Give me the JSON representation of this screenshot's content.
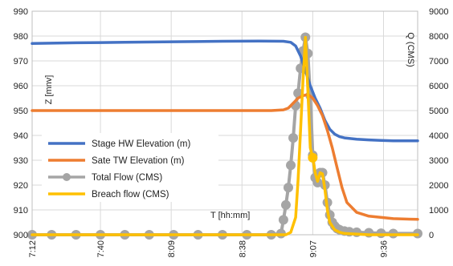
{
  "chart_data": {
    "type": "line",
    "x_unit": "minutes_after_midnight",
    "ylim": [
      900,
      990
    ],
    "y2lim": [
      0,
      9000
    ],
    "xlim": [
      432,
      590
    ],
    "left_ticks": [
      "900",
      "910",
      "920",
      "930",
      "940",
      "950",
      "960",
      "970",
      "980",
      "990"
    ],
    "right_ticks": [
      "0",
      "1000",
      "2000",
      "3000",
      "4000",
      "5000",
      "6000",
      "7000",
      "8000",
      "9000"
    ],
    "x_ticks": [
      {
        "label": "7:12",
        "value": 432
      },
      {
        "label": "7:40",
        "value": 460
      },
      {
        "label": "8:09",
        "value": 489
      },
      {
        "label": "8:38",
        "value": 518
      },
      {
        "label": "9:07",
        "value": 547
      },
      {
        "label": "9:36",
        "value": 576
      }
    ],
    "ylabel": "Z [mnv]",
    "y2label": "Q (CMS)",
    "xlabel": "T [hh:mm]",
    "grid": true,
    "legend_position": "lower-left",
    "series": [
      {
        "name": "Stage HW Elevation (m)",
        "color": "#4472c4",
        "axis": "left",
        "marker": false,
        "x": [
          432,
          450,
          470,
          490,
          510,
          525,
          535,
          538,
          540,
          542,
          544,
          546,
          548,
          550,
          552,
          554,
          556,
          558,
          560,
          565,
          570,
          575,
          580,
          590
        ],
        "y": [
          977,
          977.3,
          977.5,
          977.7,
          977.9,
          978,
          977.9,
          977.5,
          976,
          972,
          966,
          960,
          955,
          951,
          946,
          942.5,
          940.5,
          939.5,
          939,
          938.5,
          938.2,
          938,
          937.8,
          937.8
        ]
      },
      {
        "name": "Sate TW Elevation (m)",
        "color": "#ed7d31",
        "axis": "left",
        "marker": false,
        "x": [
          432,
          450,
          470,
          490,
          510,
          530,
          535,
          537,
          539,
          541,
          543,
          545,
          547,
          549,
          551,
          553,
          555,
          557,
          559,
          561,
          565,
          570,
          580,
          590
        ],
        "y": [
          950,
          950,
          950,
          950,
          950,
          950,
          950.3,
          951,
          953,
          955,
          956,
          956.5,
          955,
          952,
          948,
          942,
          935,
          927,
          919,
          913,
          909,
          907.5,
          906.5,
          906.2
        ]
      },
      {
        "name": "Total Flow (CMS)",
        "color": "#a5a5a5",
        "axis": "right",
        "marker": true,
        "x": [
          432,
          440,
          450,
          460,
          470,
          480,
          490,
          500,
          510,
          520,
          530,
          534,
          535,
          536,
          537,
          538,
          539,
          540,
          541,
          542,
          543,
          544,
          545,
          546,
          547,
          548,
          549,
          550,
          551,
          552,
          553,
          554,
          555,
          556,
          557,
          558,
          560,
          562,
          565,
          570,
          575,
          580,
          590
        ],
        "y": [
          0,
          0,
          0,
          0,
          0,
          0,
          0,
          0,
          0,
          0,
          0,
          50,
          600,
          1200,
          1900,
          2800,
          3900,
          5200,
          5700,
          6700,
          7400,
          7950,
          7300,
          5600,
          3200,
          2300,
          2100,
          2500,
          2500,
          2000,
          1300,
          800,
          500,
          350,
          250,
          200,
          150,
          120,
          100,
          80,
          60,
          50,
          50
        ]
      },
      {
        "name": "Breach flow (CMS)",
        "color": "#ffc000",
        "axis": "right",
        "marker": false,
        "x": [
          432,
          450,
          470,
          490,
          510,
          530,
          536,
          538,
          540,
          541,
          542,
          543,
          544,
          545,
          546,
          547,
          548,
          549,
          550,
          551,
          552,
          553,
          554,
          556,
          558,
          560,
          570,
          590
        ],
        "y": [
          0,
          0,
          0,
          0,
          0,
          0,
          0,
          100,
          700,
          2200,
          4200,
          6200,
          7950,
          5800,
          3500,
          3100,
          2500,
          2150,
          2500,
          2450,
          1800,
          1000,
          500,
          200,
          100,
          50,
          0,
          0
        ]
      }
    ]
  }
}
